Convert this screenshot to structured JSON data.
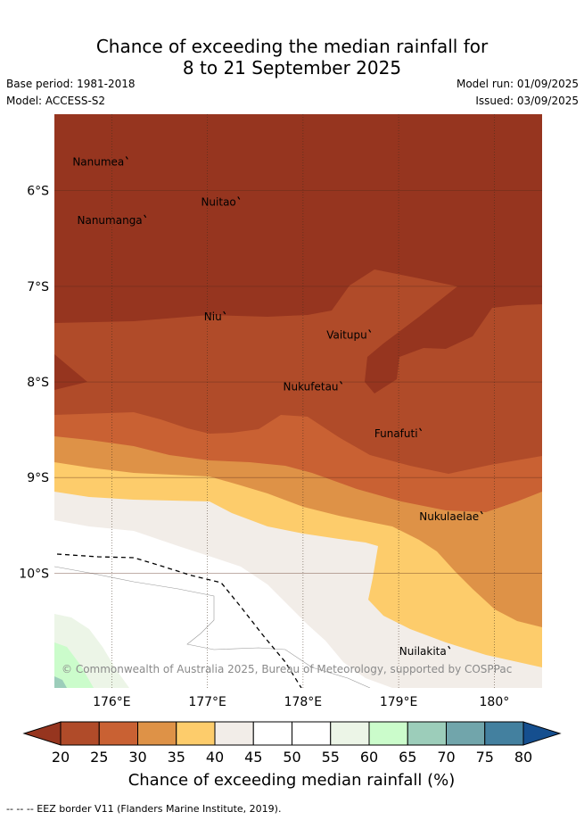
{
  "title": {
    "line1": "Chance of exceeding the median rainfall for",
    "line2": "8 to 21 September 2025"
  },
  "meta": {
    "base_period": "Base period: 1981-2018",
    "model": "Model: ACCESS-S2",
    "model_run": "Model run: 01/09/2025",
    "issued": "Issued: 03/09/2025"
  },
  "map": {
    "lon_range": [
      175.4,
      180.5
    ],
    "lat_range": [
      -11.2,
      -5.2
    ],
    "lat_ticks": [
      {
        "value": -6,
        "label": "6°S"
      },
      {
        "value": -7,
        "label": "7°S"
      },
      {
        "value": -8,
        "label": "8°S"
      },
      {
        "value": -9,
        "label": "9°S"
      },
      {
        "value": -10,
        "label": "10°S"
      }
    ],
    "lon_ticks": [
      {
        "value": 176,
        "label": "176°E"
      },
      {
        "value": 177,
        "label": "177°E"
      },
      {
        "value": 178,
        "label": "178°E"
      },
      {
        "value": 179,
        "label": "179°E"
      },
      {
        "value": 180,
        "label": "180°"
      }
    ],
    "islands": [
      {
        "name": "Nanumea",
        "lon": 176.13,
        "lat": -5.68
      },
      {
        "name": "Nuitao",
        "lon": 177.3,
        "lat": -6.1
      },
      {
        "name": "Nanumanga",
        "lon": 176.32,
        "lat": -6.29
      },
      {
        "name": "Niu",
        "lon": 177.15,
        "lat": -7.3
      },
      {
        "name": "Vaitupu",
        "lon": 178.67,
        "lat": -7.49
      },
      {
        "name": "Nukufetau",
        "lon": 178.37,
        "lat": -8.03
      },
      {
        "name": "Funafuti",
        "lon": 179.2,
        "lat": -8.52
      },
      {
        "name": "Nukulaelae",
        "lon": 179.84,
        "lat": -9.39
      },
      {
        "name": "Nuilakita",
        "lon": 179.5,
        "lat": -10.8
      }
    ],
    "copyright": "© Commonwealth of Australia 2025, Bureau of Meteorology, supported by COSPPac"
  },
  "colorbar": {
    "ticks": [
      "20",
      "25",
      "30",
      "35",
      "40",
      "45",
      "50",
      "55",
      "60",
      "65",
      "70",
      "75",
      "80"
    ],
    "colors": {
      "under": "#96351f",
      "bins": [
        "#b04b29",
        "#c96133",
        "#de9247",
        "#fdcc6b",
        "#f2ede8",
        "#ffffff",
        "#ffffff",
        "#ecf5e7",
        "#cbfccb",
        "#9ccdba",
        "#71a5ab",
        "#43809f"
      ],
      "over": "#154f8f"
    },
    "label": "Chance of exceeding median rainfall (%)"
  },
  "footer": {
    "eez_note": "-- -- -- EEZ border V11 (Flanders Marine Institute, 2019)."
  }
}
